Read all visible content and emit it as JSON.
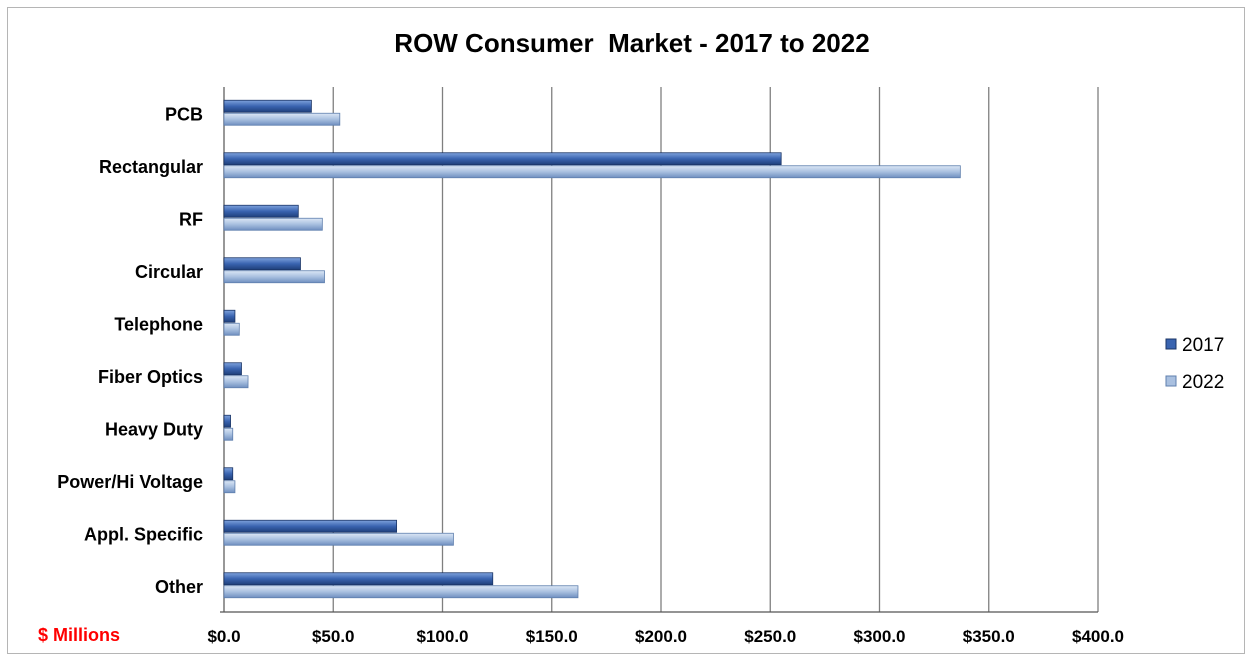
{
  "colors": {
    "series_2017": "#3a64b0",
    "series_2022": "#a9c0e0",
    "unit_label": "#ff0000",
    "grid": "#7f7f7f"
  },
  "chart_data": {
    "type": "bar",
    "orientation": "horizontal",
    "title": "ROW Consumer  Market - 2017 to 2022",
    "unit_label": "$ Millions",
    "categories": [
      "PCB",
      "Rectangular",
      "RF",
      "Circular",
      "Telephone",
      "Fiber Optics",
      "Heavy Duty",
      "Power/Hi Voltage",
      "Appl. Specific",
      "Other"
    ],
    "series": [
      {
        "name": "2017",
        "values": [
          40,
          255,
          34,
          35,
          5,
          8,
          3,
          4,
          79,
          123
        ]
      },
      {
        "name": "2022",
        "values": [
          53,
          337,
          45,
          46,
          7,
          11,
          4,
          5,
          105,
          162
        ]
      }
    ],
    "xlim": [
      0,
      400
    ],
    "x_ticks": [
      "$0.0",
      "$50.0",
      "$100.0",
      "$150.0",
      "$200.0",
      "$250.0",
      "$300.0",
      "$350.0",
      "$400.0"
    ],
    "grid": "vertical",
    "legend_position": "right"
  }
}
